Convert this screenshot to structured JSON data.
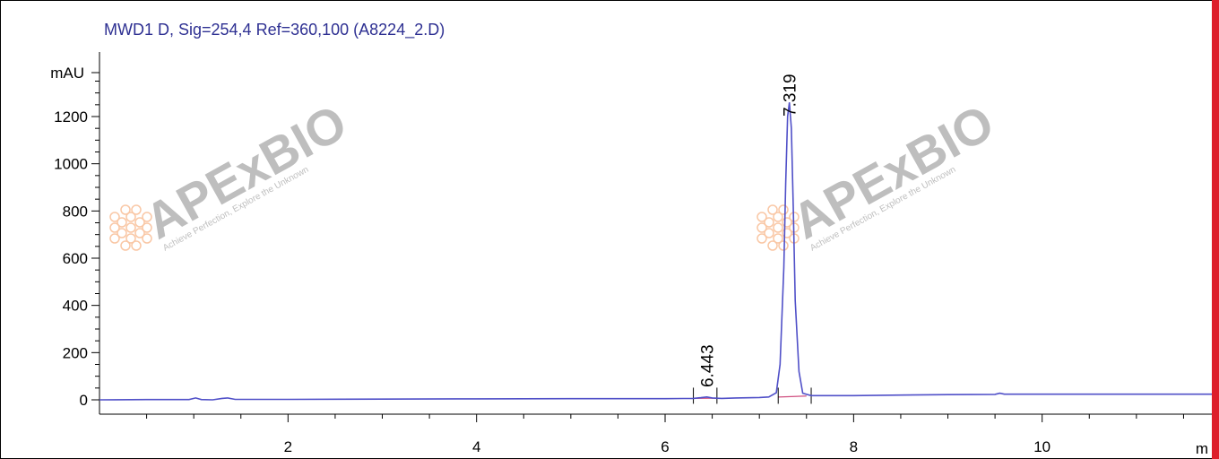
{
  "chart_data": {
    "type": "line",
    "title": "MWD1 D, Sig=254,4 Ref=360,100 (A8224_2.D)",
    "ylabel": "mAU",
    "xlabel": "m",
    "xlim": [
      0,
      11.8
    ],
    "ylim": [
      -50,
      1420
    ],
    "x_ticks": [
      2,
      4,
      6,
      8,
      10
    ],
    "y_ticks": [
      0,
      200,
      400,
      600,
      800,
      1000,
      1200
    ],
    "series": [
      {
        "x": [
          0,
          0.5,
          0.95,
          1.02,
          1.08,
          1.2,
          1.3,
          1.36,
          1.44,
          2.0,
          3.0,
          4.0,
          5.0,
          6.0,
          6.3,
          6.38,
          6.443,
          6.5,
          6.6,
          6.75,
          7.0,
          7.1,
          7.18,
          7.22,
          7.26,
          7.28,
          7.3,
          7.319,
          7.34,
          7.36,
          7.38,
          7.42,
          7.46,
          7.55,
          8.0,
          8.5,
          9.0,
          9.5,
          9.55,
          9.6,
          10.0,
          11.0,
          11.8
        ],
        "y": [
          0,
          1,
          1,
          8,
          1,
          0,
          6,
          8,
          2,
          2,
          3,
          4,
          5,
          5,
          6,
          9,
          12,
          8,
          6,
          8,
          10,
          12,
          30,
          150,
          560,
          920,
          1200,
          1260,
          1150,
          820,
          420,
          120,
          28,
          18,
          18,
          20,
          22,
          23,
          28,
          24,
          24,
          24,
          24
        ]
      }
    ],
    "peak_labels": [
      {
        "x": 6.443,
        "text": "6.443"
      },
      {
        "x": 7.319,
        "text": "7.319"
      }
    ],
    "watermark": "APExBIO",
    "watermark_tagline": "Achieve Perfection, Explore the Unknown",
    "colors": {
      "signal": "#5050c8",
      "title": "#2e3092",
      "watermark": "#8a8a8a",
      "watermark_accent": "#f59a5c",
      "right_border": "#dd1e2b"
    }
  }
}
